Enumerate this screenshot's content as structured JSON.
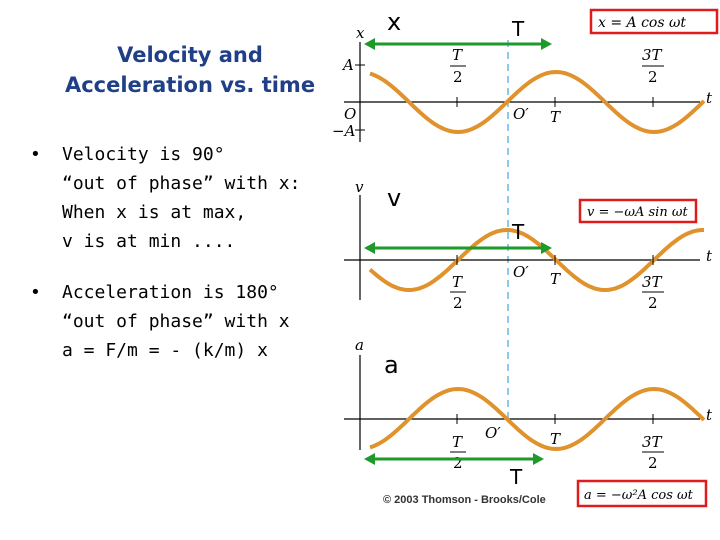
{
  "title": {
    "line1": "Velocity and",
    "line2": "Acceleration vs. time"
  },
  "bullets": [
    {
      "symbol": "•",
      "lines": [
        "Velocity is 90°",
        "“out of phase” with x:",
        "When x is at max,",
        "v is at min ...."
      ]
    },
    {
      "symbol": "•",
      "lines": [
        "Acceleration is 180°",
        "“out of phase” with x",
        "a = F/m = - (k/m) x"
      ]
    }
  ],
  "graphs": [
    {
      "var_label": "x",
      "period_label": "T",
      "axis_y": "x",
      "axis_t": "t",
      "amp_pos": "A",
      "amp_neg": "−A",
      "origin": "O",
      "origin_prime": "O′",
      "equation": "x = A cos ωt"
    },
    {
      "var_label": "v",
      "period_label": "T",
      "axis_y": "v",
      "axis_t": "t",
      "origin_prime": "O′",
      "equation": "v = −ωA sin ωt"
    },
    {
      "var_label": "a",
      "period_label": "T",
      "axis_y": "a",
      "axis_t": "t",
      "origin_prime": "O′",
      "equation": "a = −ω²A cos ωt"
    }
  ],
  "ticks": {
    "half_num": "T",
    "half_den": "2",
    "full": "T",
    "three_half_num": "3T",
    "three_half_den": "2"
  },
  "copyright": "© 2003 Thomson - Brooks/Cole",
  "colors": {
    "curve": "#e0922d",
    "arrow": "#1e9a2b",
    "eq_border": "#e01b1b",
    "dashed": "#8ec9e6",
    "title": "#1f3f86"
  }
}
